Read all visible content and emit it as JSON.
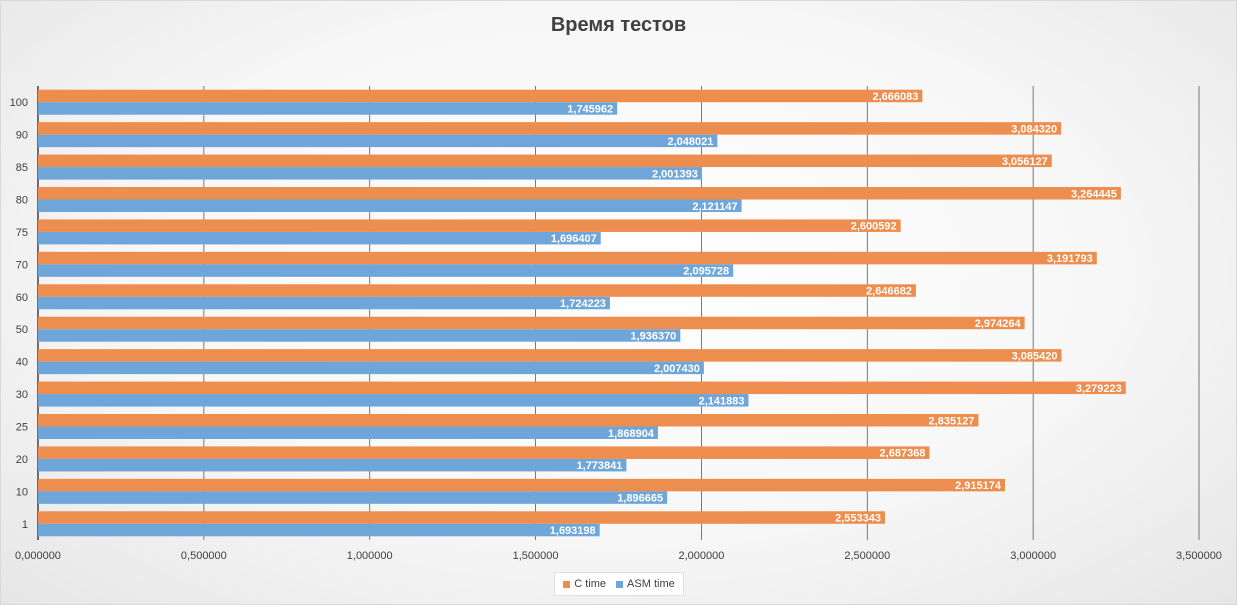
{
  "colors": {
    "c_time": "#ED8D4E",
    "asm_time": "#6FA6DA",
    "grid": "#595959",
    "axis": "#404040"
  },
  "chart_data": {
    "type": "bar",
    "orientation": "horizontal",
    "title": "Время тестов",
    "categories": [
      "1",
      "10",
      "20",
      "25",
      "30",
      "40",
      "50",
      "60",
      "70",
      "75",
      "80",
      "85",
      "90",
      "100"
    ],
    "series": [
      {
        "name": "C time",
        "color": "#ED8D4E",
        "values": [
          2.553343,
          2.915174,
          2.687368,
          2.835127,
          3.279223,
          3.08542,
          2.974264,
          2.646682,
          3.191793,
          2.600592,
          3.264445,
          3.056127,
          3.08432,
          2.666083
        ],
        "labels": [
          "2,553343",
          "2,915174",
          "2,687368",
          "2,835127",
          "3,279223",
          "3,085420",
          "2,974264",
          "2,646682",
          "3,191793",
          "2,600592",
          "3,264445",
          "3,056127",
          "3,084320",
          "2,666083"
        ]
      },
      {
        "name": "ASM time",
        "color": "#6FA6DA",
        "values": [
          1.693198,
          1.896665,
          1.773841,
          1.868904,
          2.141883,
          2.00743,
          1.93637,
          1.724223,
          2.095728,
          1.696407,
          2.121147,
          2.001393,
          2.048021,
          1.745962
        ],
        "labels": [
          "1,693198",
          "1,896665",
          "1,773841",
          "1,868904",
          "2,141883",
          "2,007430",
          "1,936370",
          "1,724223",
          "2,095728",
          "1,696407",
          "2,121147",
          "2,001393",
          "2,048021",
          "1,745962"
        ]
      }
    ],
    "xlim": [
      0,
      3.5
    ],
    "xticks": [
      0,
      0.5,
      1.0,
      1.5,
      2.0,
      2.5,
      3.0,
      3.5
    ],
    "xtick_labels": [
      "0,000000",
      "0,500000",
      "1,000000",
      "1,500000",
      "2,000000",
      "2,500000",
      "3,000000",
      "3,500000"
    ],
    "grid": true,
    "legend_position": "bottom"
  }
}
